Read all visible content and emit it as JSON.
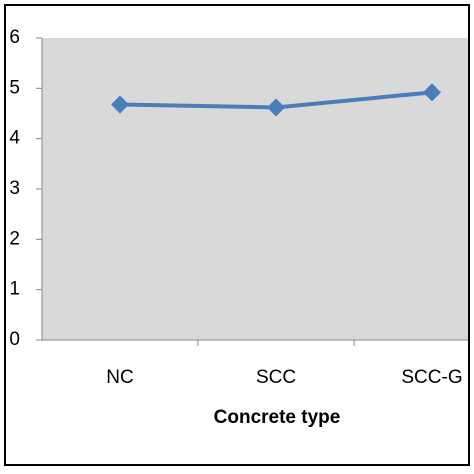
{
  "chart_data": {
    "type": "line",
    "x_label": "Concrete type",
    "categories": [
      "NC",
      "SCC",
      "SCC-G"
    ],
    "series": [
      {
        "color": "#4a7ebb",
        "values": [
          4.68,
          4.62,
          4.92
        ]
      }
    ],
    "ylim": [
      0,
      6
    ],
    "yticks": [
      0,
      1,
      2,
      3,
      4,
      5,
      6
    ],
    "plot_background": "#d9d9d9"
  }
}
